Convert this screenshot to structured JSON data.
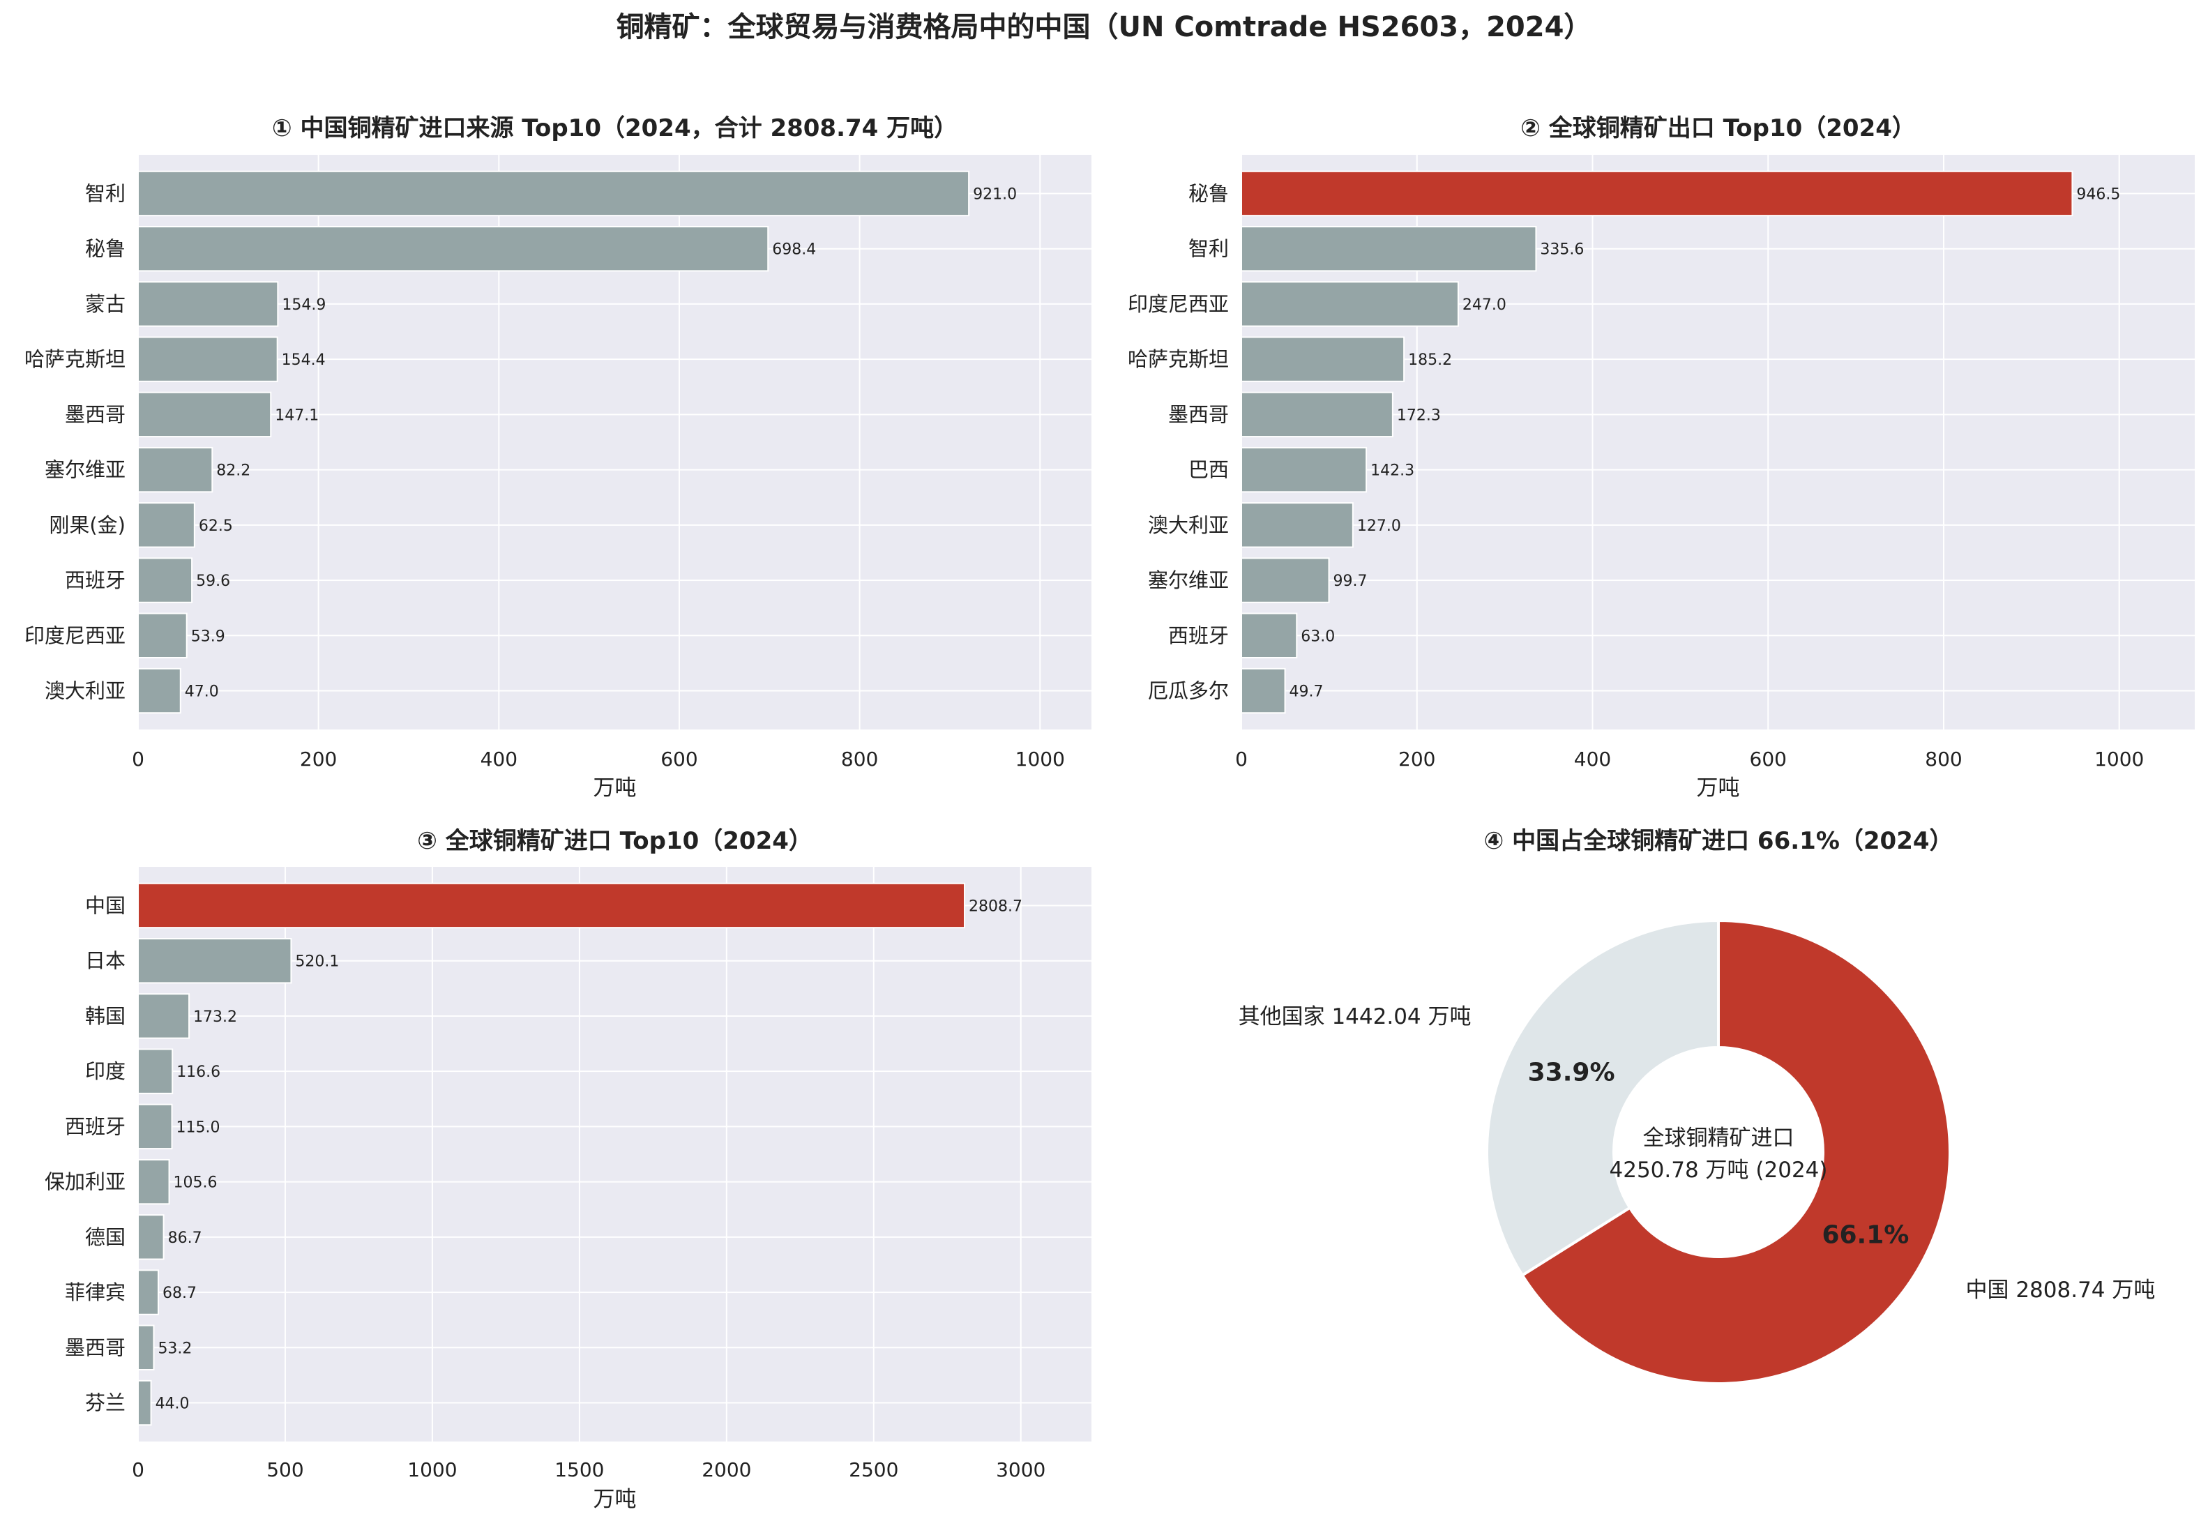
{
  "page": {
    "title": "铜精矿：全球贸易与消费格局中的中国（UN Comtrade HS2603，2024）"
  },
  "colors": {
    "bar": "#95a5a6",
    "highlight": "#c0392b",
    "panel_bg": "#eaeaf2",
    "grid": "#ffffff",
    "pie_other": "#dfe6e9",
    "text": "#222222"
  },
  "chart_data": [
    {
      "type": "bar",
      "orientation": "horizontal",
      "title": "① 中国铜精矿进口来源 Top10（2024，合计 2808.74 万吨）",
      "xlabel": "万吨",
      "xlim": [
        0,
        1057
      ],
      "xticks": [
        0,
        200,
        400,
        600,
        800,
        1000
      ],
      "categories": [
        "智利",
        "秘鲁",
        "蒙古",
        "哈萨克斯坦",
        "墨西哥",
        "塞尔维亚",
        "刚果(金)",
        "西班牙",
        "印度尼西亚",
        "澳大利亚"
      ],
      "values": [
        921.0,
        698.4,
        154.9,
        154.4,
        147.1,
        82.2,
        62.5,
        59.6,
        53.9,
        47.0
      ],
      "highlight": "",
      "grid": true
    },
    {
      "type": "bar",
      "orientation": "horizontal",
      "title": "② 全球铜精矿出口 Top10（2024）",
      "xlabel": "万吨",
      "xlim": [
        0,
        1086
      ],
      "xticks": [
        0,
        200,
        400,
        600,
        800,
        1000
      ],
      "categories": [
        "秘鲁",
        "智利",
        "印度尼西亚",
        "哈萨克斯坦",
        "墨西哥",
        "巴西",
        "澳大利亚",
        "塞尔维亚",
        "西班牙",
        "厄瓜多尔"
      ],
      "values": [
        946.5,
        335.6,
        247.0,
        185.2,
        172.3,
        142.3,
        127.0,
        99.7,
        63.0,
        49.7
      ],
      "highlight": "秘鲁",
      "grid": true
    },
    {
      "type": "bar",
      "orientation": "horizontal",
      "title": "③ 全球铜精矿进口 Top10（2024）",
      "xlabel": "万吨",
      "xlim": [
        0,
        3240
      ],
      "xticks": [
        0,
        500,
        1000,
        1500,
        2000,
        2500,
        3000
      ],
      "categories": [
        "中国",
        "日本",
        "韩国",
        "印度",
        "西班牙",
        "保加利亚",
        "德国",
        "菲律宾",
        "墨西哥",
        "芬兰"
      ],
      "values": [
        2808.7,
        520.1,
        173.2,
        116.6,
        115.0,
        105.6,
        86.7,
        68.7,
        53.2,
        44.0
      ],
      "highlight": "中国",
      "grid": true
    },
    {
      "type": "pie",
      "donut": true,
      "title": "④ 中国占全球铜精矿进口 66.1%（2024）",
      "center_label": [
        "全球铜精矿进口",
        "4250.78 万吨 (2024)"
      ],
      "slices": [
        {
          "label": "中国 2808.74 万吨",
          "value": 2808.74,
          "pct_label": "66.1%"
        },
        {
          "label": "其他国家 1442.04 万吨",
          "value": 1442.04,
          "pct_label": "33.9%"
        }
      ]
    }
  ]
}
